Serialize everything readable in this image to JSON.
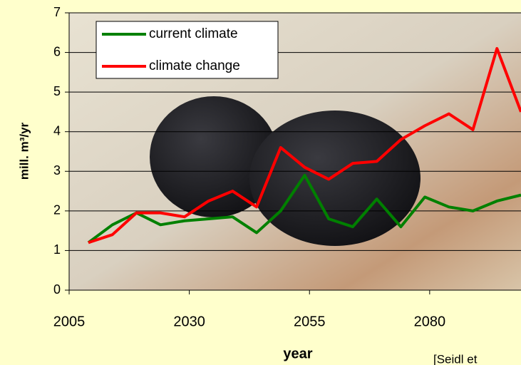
{
  "chart_data": {
    "type": "line",
    "x_label": "year",
    "y_label": "mill. m³/yr",
    "source": "[Seidl et",
    "x": [
      2009,
      2014,
      2019,
      2024,
      2029,
      2034,
      2039,
      2044,
      2049,
      2054,
      2059,
      2064,
      2069,
      2074,
      2079,
      2084,
      2089,
      2094,
      2099
    ],
    "series": [
      {
        "name": "current climate",
        "color": "#008000",
        "values": [
          1.2,
          1.65,
          1.95,
          1.65,
          1.75,
          1.8,
          1.85,
          1.45,
          2.0,
          2.9,
          1.8,
          1.6,
          2.3,
          1.6,
          2.35,
          2.1,
          2.0,
          2.25,
          2.4
        ]
      },
      {
        "name": "climate change",
        "color": "#ff0000",
        "values": [
          1.2,
          1.4,
          1.95,
          1.95,
          1.85,
          2.25,
          2.5,
          2.1,
          3.6,
          3.1,
          2.8,
          3.2,
          3.25,
          3.8,
          4.15,
          4.45,
          4.05,
          6.1,
          4.5
        ]
      }
    ],
    "xlim": [
      2005,
      2099
    ],
    "xticks": [
      2005,
      2030,
      2055,
      2080
    ],
    "ylim": [
      0,
      7
    ],
    "yticks": [
      0,
      1,
      2,
      3,
      4,
      5,
      6,
      7
    ],
    "grid": true
  }
}
